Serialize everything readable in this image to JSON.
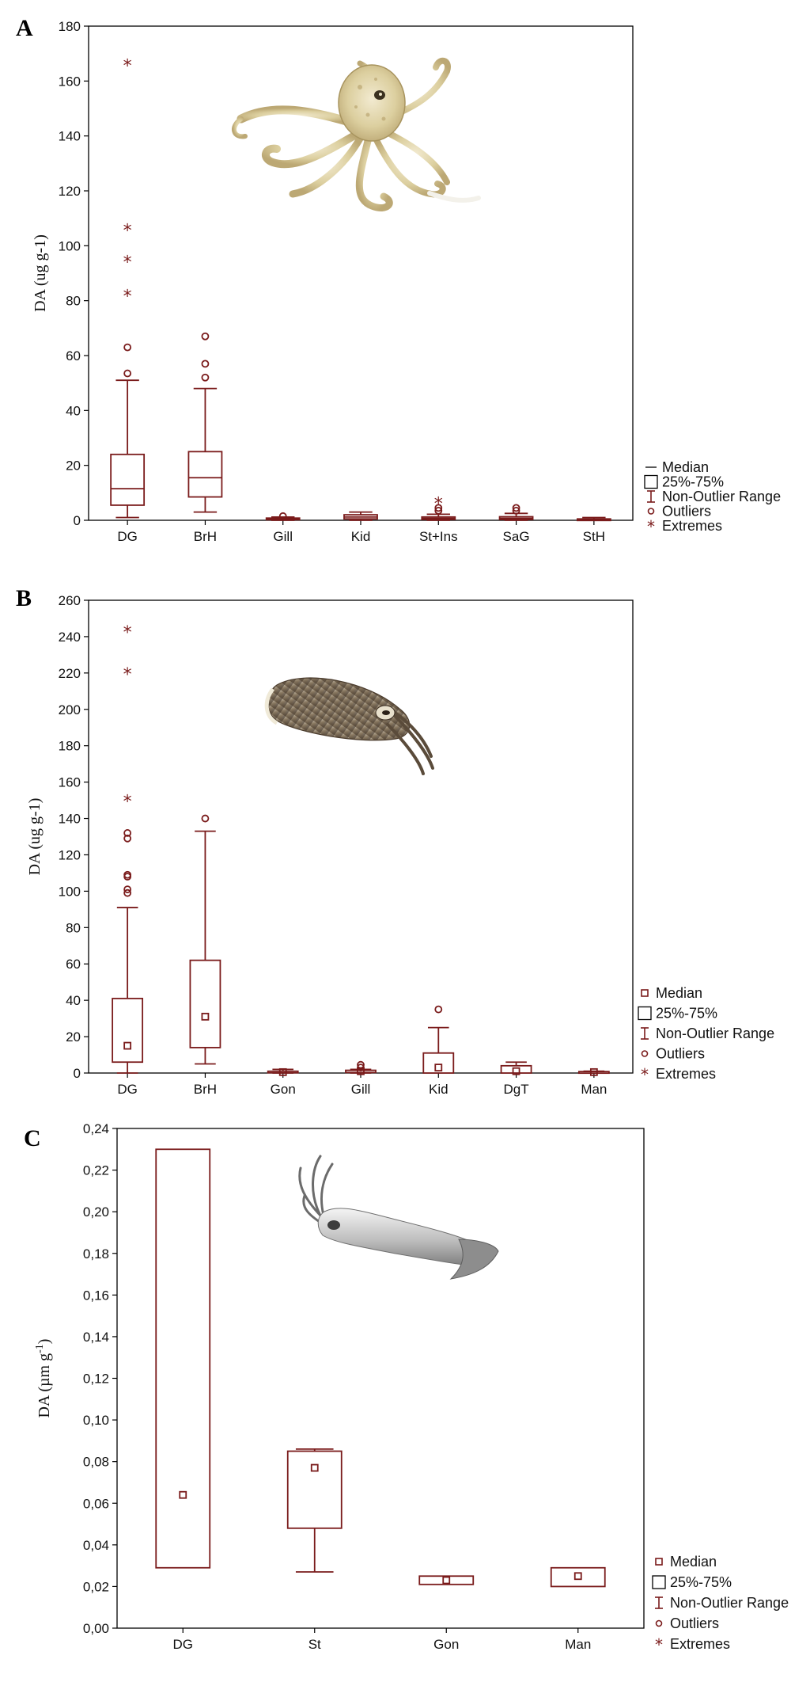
{
  "chart_data": [
    {
      "type": "box",
      "panel": "A",
      "ylabel": "DA (ug g-1)",
      "ylabel_parts": [
        "DA (ug g-1)"
      ],
      "ylim": [
        0,
        180
      ],
      "yticks": [
        0,
        20,
        40,
        60,
        80,
        100,
        120,
        140,
        160,
        180
      ],
      "ytick_labels": [
        "0",
        "20",
        "40",
        "60",
        "80",
        "100",
        "120",
        "140",
        "160",
        "180"
      ],
      "median_marker": "line",
      "categories": [
        "DG",
        "BrH",
        "Gill",
        "Kid",
        "St+Ins",
        "SaG",
        "StH"
      ],
      "boxes": [
        {
          "category": "DG",
          "q1": 5.5,
          "median": 11.5,
          "q3": 24,
          "whisker_low": 1,
          "whisker_high": 51,
          "outliers": [
            53.5,
            63
          ],
          "extremes": [
            82,
            94.5,
            106,
            166
          ]
        },
        {
          "category": "BrH",
          "q1": 8.5,
          "median": 15.5,
          "q3": 25,
          "whisker_low": 3,
          "whisker_high": 48,
          "outliers": [
            52,
            57,
            67
          ],
          "extremes": []
        },
        {
          "category": "Gill",
          "q1": 0.2,
          "median": 0.5,
          "q3": 0.8,
          "whisker_low": 0,
          "whisker_high": 1.2,
          "outliers": [
            1.5
          ],
          "extremes": []
        },
        {
          "category": "Kid",
          "q1": 0.5,
          "median": 1.2,
          "q3": 2,
          "whisker_low": 0,
          "whisker_high": 3,
          "outliers": [],
          "extremes": []
        },
        {
          "category": "St+Ins",
          "q1": 0.3,
          "median": 0.7,
          "q3": 1.2,
          "whisker_low": 0,
          "whisker_high": 2.2,
          "outliers": [
            3.5,
            4.5
          ],
          "extremes": [
            6.5
          ]
        },
        {
          "category": "SaG",
          "q1": 0.3,
          "median": 0.7,
          "q3": 1.3,
          "whisker_low": 0,
          "whisker_high": 2.5,
          "outliers": [
            3.5,
            4.5
          ],
          "extremes": []
        },
        {
          "category": "StH",
          "q1": 0.1,
          "median": 0.3,
          "q3": 0.5,
          "whisker_low": 0,
          "whisker_high": 1,
          "outliers": [],
          "extremes": []
        }
      ],
      "legend": [
        "Median",
        "25%-75%",
        "Non-Outlier Range",
        "Outliers",
        "Extremes"
      ],
      "legend_position": "right"
    },
    {
      "type": "box",
      "panel": "B",
      "ylabel": "DA (ug g-1)",
      "ylabel_parts": [
        "DA (ug g-1)"
      ],
      "ylim": [
        0,
        260
      ],
      "yticks": [
        0,
        20,
        40,
        60,
        80,
        100,
        120,
        140,
        160,
        180,
        200,
        220,
        240,
        260
      ],
      "ytick_labels": [
        "0",
        "20",
        "40",
        "60",
        "80",
        "100",
        "120",
        "140",
        "160",
        "180",
        "200",
        "220",
        "240",
        "260"
      ],
      "median_marker": "square",
      "categories": [
        "DG",
        "BrH",
        "Gon",
        "Gill",
        "Kid",
        "DgT",
        "Man"
      ],
      "boxes": [
        {
          "category": "DG",
          "q1": 6,
          "median": 15,
          "q3": 41,
          "whisker_low": 0,
          "whisker_high": 91,
          "outliers": [
            99,
            101,
            108,
            109,
            129,
            132
          ],
          "extremes": [
            150,
            220,
            243
          ]
        },
        {
          "category": "BrH",
          "q1": 14,
          "median": 31,
          "q3": 62,
          "whisker_low": 5,
          "whisker_high": 133,
          "outliers": [
            140
          ],
          "extremes": []
        },
        {
          "category": "Gon",
          "q1": 0.2,
          "median": 0.5,
          "q3": 1,
          "whisker_low": 0,
          "whisker_high": 2,
          "outliers": [],
          "extremes": []
        },
        {
          "category": "Gill",
          "q1": 0.3,
          "median": 1,
          "q3": 1.5,
          "whisker_low": 0,
          "whisker_high": 2,
          "outliers": [
            3,
            4.5
          ],
          "extremes": []
        },
        {
          "category": "Kid",
          "q1": 0,
          "median": 3,
          "q3": 11,
          "whisker_low": 0,
          "whisker_high": 25,
          "outliers": [
            35
          ],
          "extremes": []
        },
        {
          "category": "DgT",
          "q1": 0,
          "median": 1,
          "q3": 4,
          "whisker_low": 0,
          "whisker_high": 6,
          "outliers": [],
          "extremes": []
        },
        {
          "category": "Man",
          "q1": 0.2,
          "median": 0.5,
          "q3": 0.8,
          "whisker_low": 0,
          "whisker_high": 1,
          "outliers": [],
          "extremes": []
        }
      ],
      "legend": [
        "Median",
        "25%-75%",
        "Non-Outlier Range",
        "Outliers",
        "Extremes"
      ],
      "legend_position": "right"
    },
    {
      "type": "box",
      "panel": "C",
      "ylabel": "DA (µm g-1)",
      "ylabel_parts": [
        "DA (µm g",
        "-1",
        ")"
      ],
      "ylim": [
        0,
        0.24
      ],
      "yticks": [
        0,
        0.02,
        0.04,
        0.06,
        0.08,
        0.1,
        0.12,
        0.14,
        0.16,
        0.18,
        0.2,
        0.22,
        0.24
      ],
      "ytick_labels": [
        "0,00",
        "0,02",
        "0,04",
        "0,06",
        "0,08",
        "0,10",
        "0,12",
        "0,14",
        "0,16",
        "0,18",
        "0,20",
        "0,22",
        "0,24"
      ],
      "median_marker": "square",
      "categories": [
        "DG",
        "St",
        "Gon",
        "Man"
      ],
      "boxes": [
        {
          "category": "DG",
          "q1": 0.029,
          "median": 0.064,
          "q3": 0.23,
          "whisker_low": 0.029,
          "whisker_high": 0.23,
          "outliers": [],
          "extremes": []
        },
        {
          "category": "St",
          "q1": 0.048,
          "median": 0.077,
          "q3": 0.085,
          "whisker_low": 0.027,
          "whisker_high": 0.086,
          "outliers": [],
          "extremes": []
        },
        {
          "category": "Gon",
          "q1": 0.021,
          "median": 0.023,
          "q3": 0.025,
          "whisker_low": 0.021,
          "whisker_high": 0.025,
          "outliers": [],
          "extremes": []
        },
        {
          "category": "Man",
          "q1": 0.02,
          "median": 0.025,
          "q3": 0.029,
          "whisker_low": 0.02,
          "whisker_high": 0.029,
          "outliers": [],
          "extremes": []
        }
      ],
      "legend": [
        "Median",
        "25%-75%",
        "Non-Outlier Range",
        "Outliers",
        "Extremes"
      ],
      "legend_position": "right"
    }
  ],
  "colors": {
    "series": "#7a1b1b",
    "axis": "#000000"
  }
}
